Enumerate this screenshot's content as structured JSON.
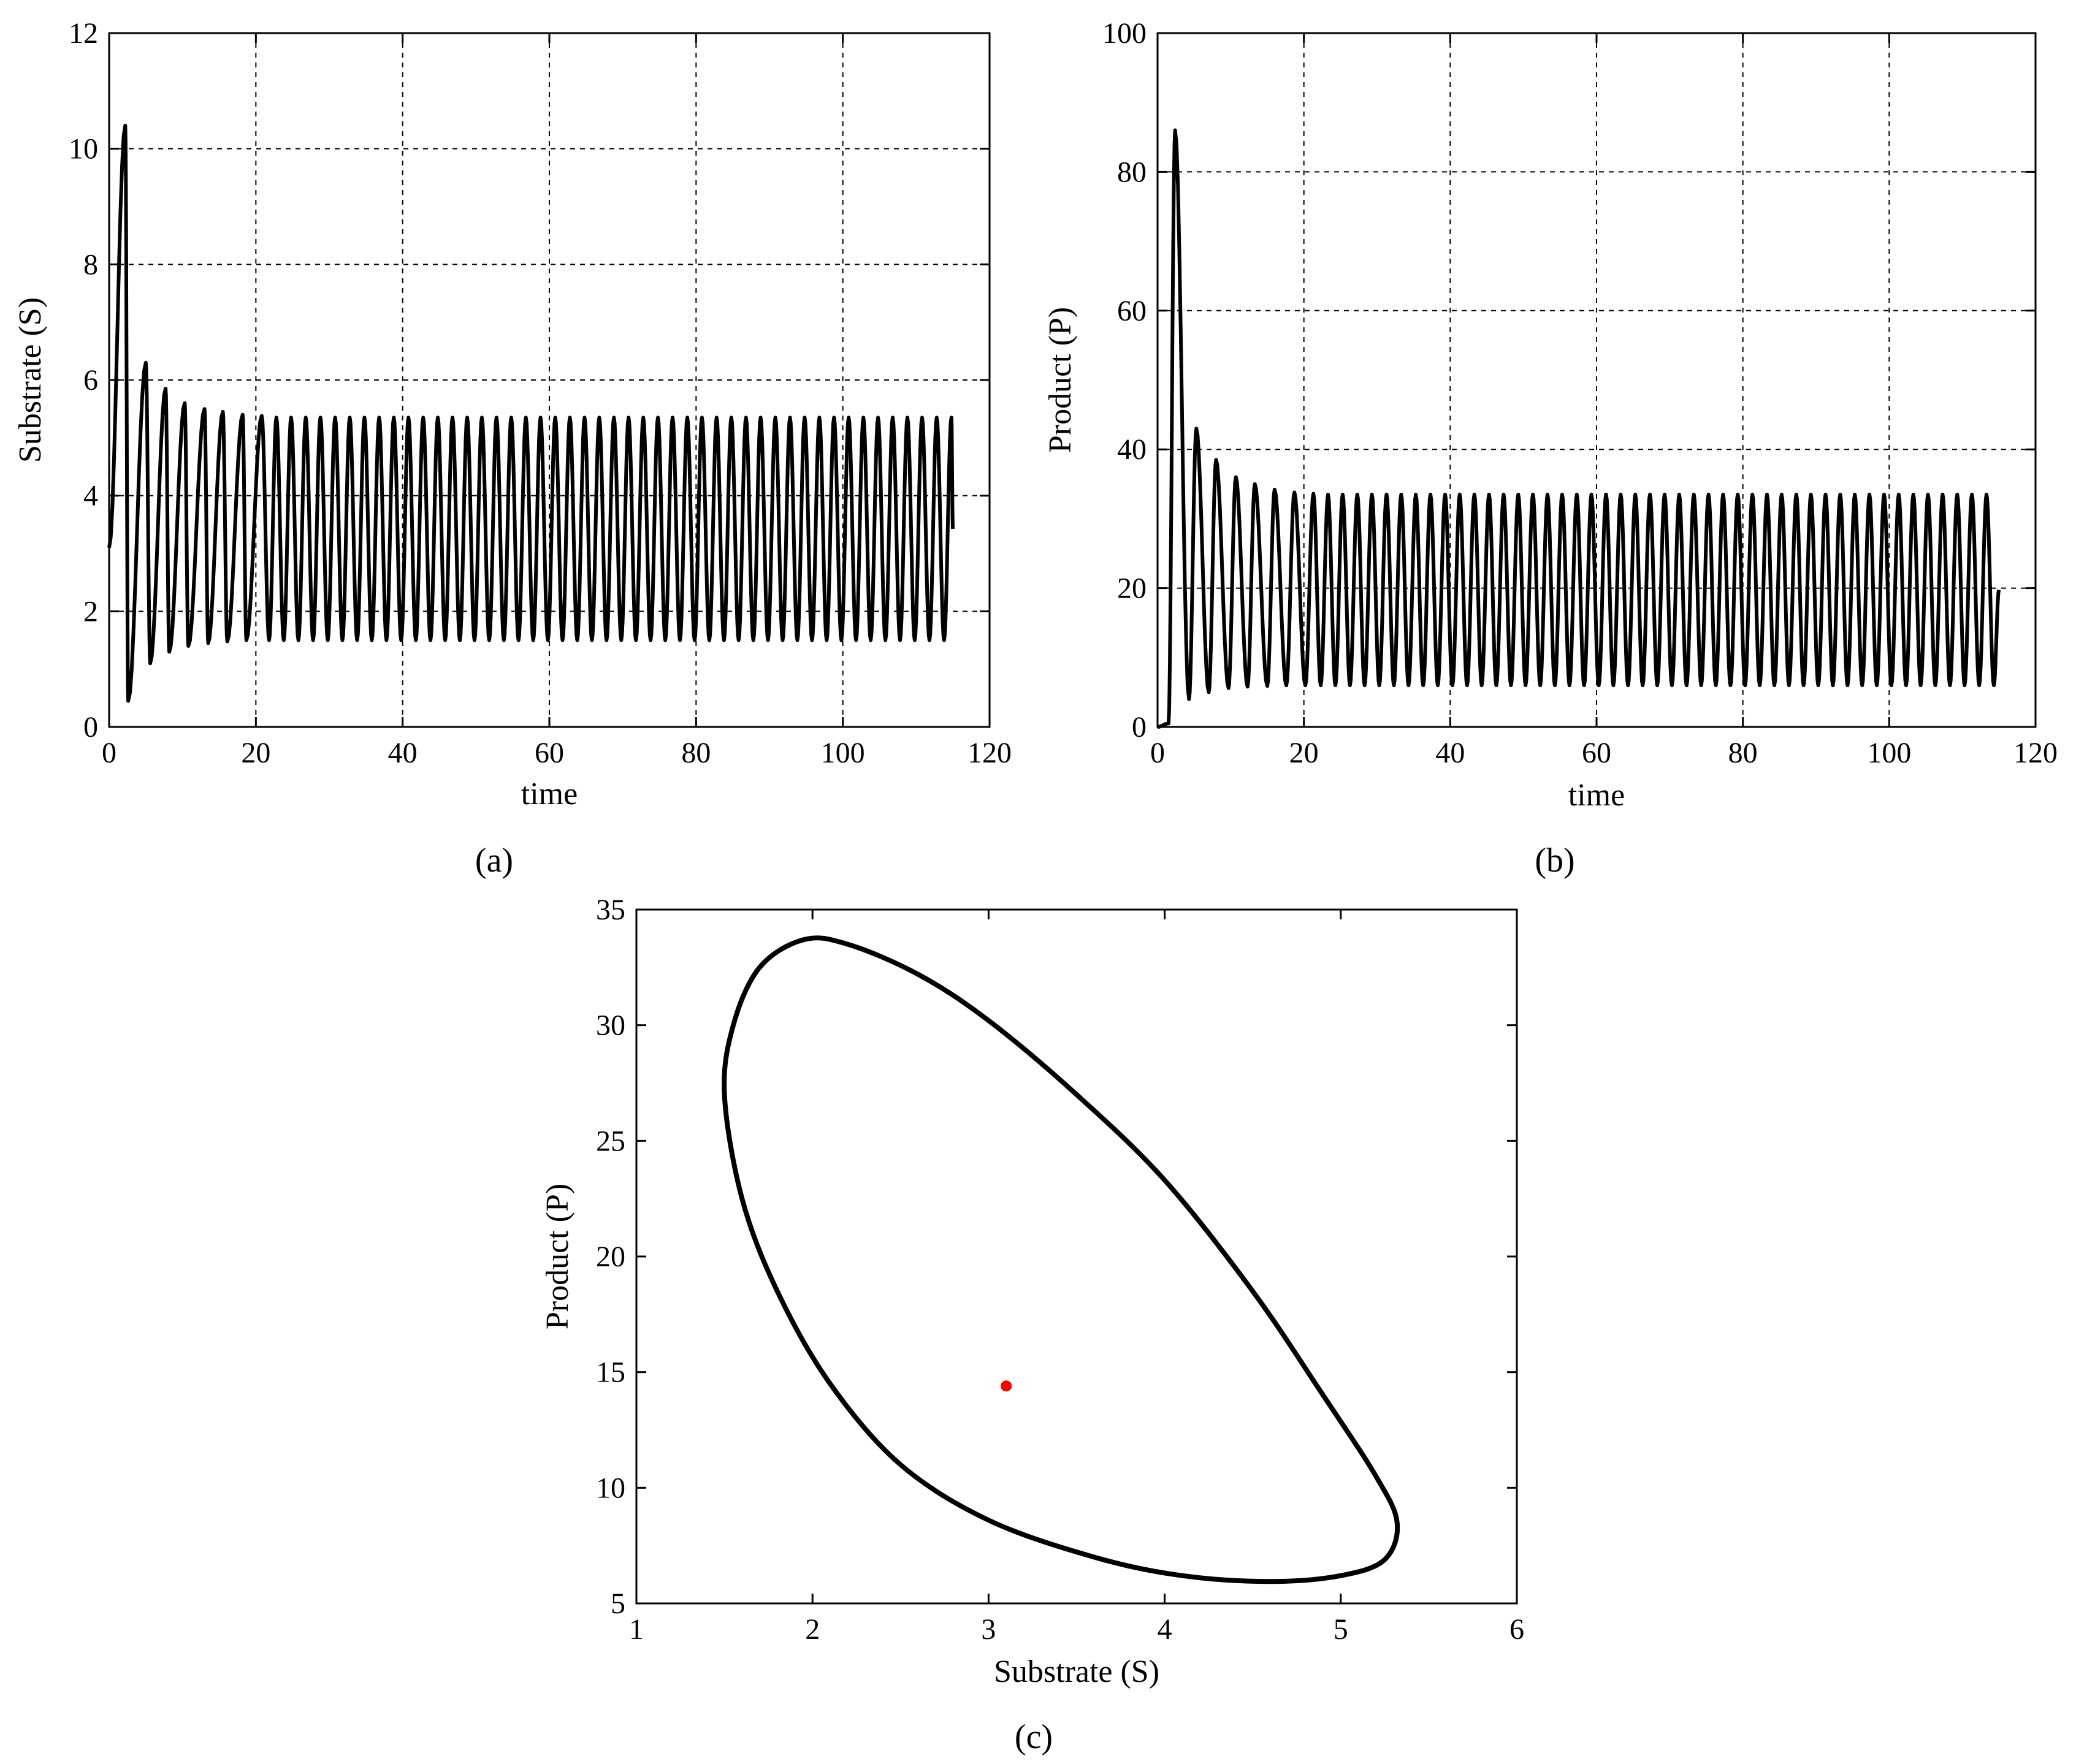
{
  "chart_data": [
    {
      "id": "a",
      "type": "line",
      "panel_label": "(a)",
      "title": "",
      "xlabel": "time",
      "ylabel": "Substrate (S)",
      "xlim": [
        0,
        120
      ],
      "ylim": [
        0,
        12
      ],
      "xticks": [
        "0",
        "20",
        "40",
        "60",
        "80",
        "100",
        "120"
      ],
      "yticks": [
        "0",
        "2",
        "4",
        "6",
        "8",
        "10",
        "12"
      ],
      "grid": true,
      "series": [
        {
          "name": "S(t)",
          "color": "#000000",
          "t_end": 115,
          "period": 2.0,
          "steady_max": 5.35,
          "steady_min": 1.5,
          "transient_peaks": [
            [
              2.2,
              10.4
            ],
            [
              5.0,
              6.3
            ],
            [
              7.7,
              5.85
            ],
            [
              10.3,
              5.6
            ],
            [
              13.0,
              5.5
            ],
            [
              15.5,
              5.45
            ],
            [
              18.2,
              5.4
            ],
            [
              20.8,
              5.38
            ]
          ],
          "transient_troughs": [
            [
              0.0,
              3.1
            ],
            [
              2.6,
              0.45
            ],
            [
              5.6,
              1.1
            ],
            [
              8.2,
              1.3
            ],
            [
              10.8,
              1.4
            ],
            [
              13.5,
              1.45
            ],
            [
              16.1,
              1.48
            ],
            [
              18.7,
              1.5
            ]
          ]
        }
      ]
    },
    {
      "id": "b",
      "type": "line",
      "panel_label": "(b)",
      "title": "",
      "xlabel": "time",
      "ylabel": "Product (P)",
      "xlim": [
        0,
        120
      ],
      "ylim": [
        0,
        100
      ],
      "xticks": [
        "0",
        "20",
        "40",
        "60",
        "80",
        "100",
        "120"
      ],
      "yticks": [
        "0",
        "20",
        "40",
        "60",
        "80",
        "100"
      ],
      "grid": true,
      "series": [
        {
          "name": "P(t)",
          "color": "#000000",
          "t_end": 115,
          "period": 2.0,
          "steady_max": 33.5,
          "steady_min": 6.0,
          "transient_peaks": [
            [
              2.4,
              86.0
            ],
            [
              5.3,
              43.0
            ],
            [
              8.0,
              38.5
            ],
            [
              10.7,
              36.0
            ],
            [
              13.3,
              35.0
            ],
            [
              16.0,
              34.2
            ],
            [
              18.7,
              33.8
            ],
            [
              21.3,
              33.6
            ]
          ],
          "transient_troughs": [
            [
              0.0,
              0.0
            ],
            [
              1.5,
              0.5
            ],
            [
              4.3,
              4.0
            ],
            [
              7.0,
              5.0
            ],
            [
              9.7,
              5.6
            ],
            [
              12.3,
              5.8
            ],
            [
              15.0,
              5.9
            ],
            [
              17.6,
              6.0
            ],
            [
              20.2,
              6.0
            ]
          ]
        }
      ]
    },
    {
      "id": "c",
      "type": "line",
      "panel_label": "(c)",
      "title": "",
      "xlabel": "Substrate (S)",
      "ylabel": "Product (P)",
      "xlim": [
        1,
        6
      ],
      "ylim": [
        5,
        35
      ],
      "xticks": [
        "1",
        "2",
        "3",
        "4",
        "5",
        "6"
      ],
      "yticks": [
        "5",
        "10",
        "15",
        "20",
        "25",
        "30",
        "35"
      ],
      "grid": false,
      "series": [
        {
          "name": "limit cycle",
          "color": "#000000",
          "points": [
            [
              1.5,
              27.0
            ],
            [
              1.55,
              30.0
            ],
            [
              1.7,
              32.5
            ],
            [
              1.95,
              33.7
            ],
            [
              2.2,
              33.5
            ],
            [
              2.6,
              32.2
            ],
            [
              3.0,
              30.2
            ],
            [
              3.5,
              27.0
            ],
            [
              4.0,
              23.3
            ],
            [
              4.5,
              18.5
            ],
            [
              4.9,
              14.0
            ],
            [
              5.2,
              10.5
            ],
            [
              5.32,
              8.5
            ],
            [
              5.25,
              6.9
            ],
            [
              5.0,
              6.2
            ],
            [
              4.6,
              5.95
            ],
            [
              4.1,
              6.2
            ],
            [
              3.6,
              7.0
            ],
            [
              3.0,
              8.6
            ],
            [
              2.5,
              11.0
            ],
            [
              2.1,
              14.5
            ],
            [
              1.8,
              18.5
            ],
            [
              1.6,
              22.5
            ],
            [
              1.5,
              27.0
            ]
          ]
        },
        {
          "name": "equilibrium",
          "type": "scatter",
          "color": "#ff0000",
          "points": [
            [
              3.1,
              14.4
            ]
          ]
        }
      ]
    }
  ]
}
